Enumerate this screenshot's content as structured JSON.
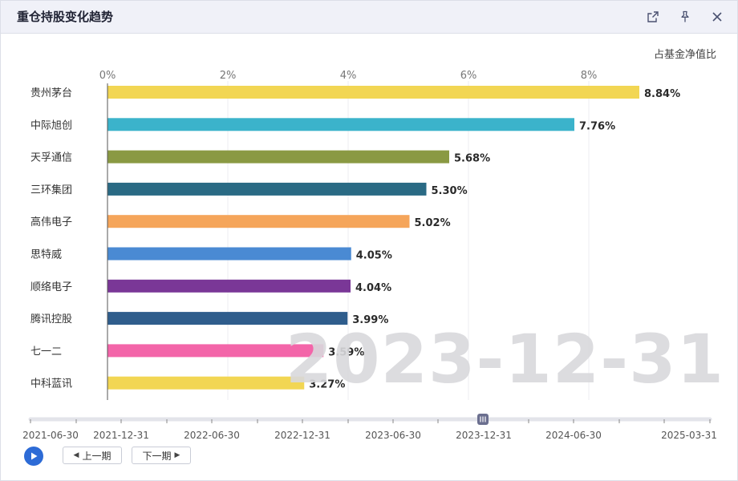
{
  "window": {
    "title": "重仓持股变化趋势",
    "icons": [
      "external-link-icon",
      "pin-icon",
      "close-icon"
    ]
  },
  "watermark": "2023-12-31",
  "chart_data": {
    "type": "bar",
    "orientation": "horizontal",
    "unit_label": "占基金净值比",
    "xlim": [
      0,
      9
    ],
    "x_ticks": [
      "0%",
      "2%",
      "4%",
      "6%",
      "8%"
    ],
    "x_tick_values": [
      0,
      2,
      4,
      6,
      8
    ],
    "grid": true,
    "categories": [
      "贵州茅台",
      "中际旭创",
      "天孚通信",
      "三环集团",
      "高伟电子",
      "思特威",
      "顺络电子",
      "腾讯控股",
      "七一二",
      "中科蓝讯"
    ],
    "values": [
      8.84,
      7.76,
      5.68,
      5.3,
      5.02,
      4.05,
      4.04,
      3.99,
      3.59,
      3.27
    ],
    "value_labels": [
      "8.84%",
      "7.76%",
      "5.68%",
      "5.30%",
      "5.02%",
      "4.05%",
      "4.04%",
      "3.99%",
      "3.59%",
      "3.27%"
    ],
    "colors": [
      "#f2d653",
      "#3bb3cb",
      "#8a9943",
      "#2a6a84",
      "#f5a55a",
      "#4a8ad3",
      "#7a3797",
      "#2f5d8c",
      "#f365a9",
      "#f2d653"
    ]
  },
  "timeline": {
    "labels": [
      "2021-06-30",
      "2021-12-31",
      "2022-06-30",
      "2022-12-31",
      "2023-06-30",
      "2023-12-31",
      "2024-06-30",
      "2025-03-31"
    ],
    "current": "2023-12-31",
    "handle_icon": "slider-handle-icon"
  },
  "controls": {
    "play_icon": "play-icon",
    "prev_label": "上一期",
    "next_label": "下一期"
  }
}
